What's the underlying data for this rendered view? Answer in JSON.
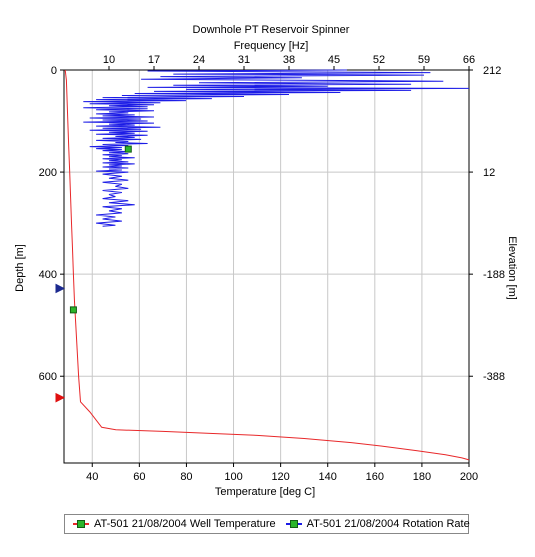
{
  "chart_data": {
    "type": "line",
    "title": "Downhole PT    Reservoir Spinner",
    "top_axis": {
      "label": "Frequency [Hz]",
      "ticks": [
        10,
        17,
        24,
        31,
        38,
        45,
        52,
        59,
        66
      ],
      "range": [
        3,
        66
      ]
    },
    "bottom_axis": {
      "label": "Temperature [deg C]",
      "ticks": [
        40,
        60,
        80,
        100,
        120,
        140,
        160,
        180,
        200
      ],
      "range": [
        28,
        200
      ]
    },
    "left_axis": {
      "label": "Depth [m]",
      "ticks": [
        0,
        200,
        400,
        600
      ],
      "range": [
        0,
        770
      ],
      "inverted": true
    },
    "right_axis": {
      "label": "Elevation [m]",
      "ticks": [
        212,
        12,
        -188,
        -388
      ]
    },
    "grid": true,
    "legend_position": "bottom",
    "series": [
      {
        "name": "AT-501 21/08/2004 Well Temperature",
        "color": "#e8282a",
        "axis": "bottom",
        "points": [
          [
            28.5,
            0
          ],
          [
            29,
            20
          ],
          [
            29.3,
            60
          ],
          [
            29.6,
            100
          ],
          [
            30,
            150
          ],
          [
            30.4,
            200
          ],
          [
            30.8,
            250
          ],
          [
            31.2,
            300
          ],
          [
            31.6,
            350
          ],
          [
            32,
            400
          ],
          [
            32.4,
            450
          ],
          [
            33,
            500
          ],
          [
            33.6,
            550
          ],
          [
            34.2,
            600
          ],
          [
            35,
            650
          ],
          [
            39,
            670
          ],
          [
            44,
            700
          ],
          [
            50,
            705
          ],
          [
            70,
            708
          ],
          [
            90,
            712
          ],
          [
            110,
            716
          ],
          [
            130,
            722
          ],
          [
            150,
            730
          ],
          [
            165,
            738
          ],
          [
            178,
            746
          ],
          [
            190,
            754
          ],
          [
            197,
            760
          ],
          [
            200,
            764
          ]
        ]
      },
      {
        "name": "AT-501 21/08/2004 Rotation Rate",
        "color": "#1c1ce6",
        "axis": "top",
        "points": [
          [
            47,
            0
          ],
          [
            16,
            2
          ],
          [
            60,
            5
          ],
          [
            20,
            8
          ],
          [
            59,
            10
          ],
          [
            18,
            13
          ],
          [
            40,
            15
          ],
          [
            15,
            18
          ],
          [
            62,
            22
          ],
          [
            24,
            25
          ],
          [
            57,
            28
          ],
          [
            20,
            30
          ],
          [
            44,
            32
          ],
          [
            16,
            34
          ],
          [
            66,
            36
          ],
          [
            22,
            38
          ],
          [
            57,
            40
          ],
          [
            17,
            42
          ],
          [
            46,
            44
          ],
          [
            14,
            46
          ],
          [
            38,
            48
          ],
          [
            12,
            50
          ],
          [
            31,
            52
          ],
          [
            9,
            54
          ],
          [
            26,
            56
          ],
          [
            8,
            58
          ],
          [
            22,
            60
          ],
          [
            6,
            62
          ],
          [
            18,
            64
          ],
          [
            7,
            66
          ],
          [
            17,
            68
          ],
          [
            10,
            70
          ],
          [
            16,
            72
          ],
          [
            6,
            74
          ],
          [
            16,
            76
          ],
          [
            8,
            78
          ],
          [
            17,
            80
          ],
          [
            10,
            82
          ],
          [
            13,
            84
          ],
          [
            8,
            86
          ],
          [
            14,
            88
          ],
          [
            9,
            90
          ],
          [
            17,
            92
          ],
          [
            7,
            94
          ],
          [
            15,
            96
          ],
          [
            9,
            98
          ],
          [
            16,
            100
          ],
          [
            6,
            102
          ],
          [
            17,
            104
          ],
          [
            10,
            106
          ],
          [
            14,
            108
          ],
          [
            8,
            110
          ],
          [
            18,
            112
          ],
          [
            9,
            114
          ],
          [
            15,
            116
          ],
          [
            7,
            118
          ],
          [
            16,
            120
          ],
          [
            10,
            122
          ],
          [
            14,
            124
          ],
          [
            8,
            126
          ],
          [
            16,
            128
          ],
          [
            11,
            130
          ],
          [
            14,
            132
          ],
          [
            9,
            134
          ],
          [
            15,
            136
          ],
          [
            8,
            138
          ],
          [
            13,
            140
          ],
          [
            11,
            142
          ],
          [
            16,
            144
          ],
          [
            9,
            146
          ],
          [
            13,
            148
          ],
          [
            7,
            150
          ],
          [
            12,
            152
          ],
          [
            8,
            154
          ],
          [
            12,
            156
          ],
          [
            9,
            158
          ],
          [
            13,
            160
          ],
          [
            10,
            162
          ],
          [
            13,
            164
          ],
          [
            9,
            166
          ],
          [
            12,
            168
          ],
          [
            10,
            170
          ],
          [
            14,
            172
          ],
          [
            9,
            174
          ],
          [
            12,
            176
          ],
          [
            10,
            178
          ],
          [
            13,
            180
          ],
          [
            9,
            182
          ],
          [
            14,
            184
          ],
          [
            10,
            186
          ],
          [
            12,
            188
          ],
          [
            9,
            190
          ],
          [
            13,
            192
          ],
          [
            10,
            194
          ],
          [
            12,
            196
          ],
          [
            8,
            198
          ],
          [
            13,
            200
          ],
          [
            9,
            204
          ],
          [
            12,
            208
          ],
          [
            10,
            212
          ],
          [
            13,
            216
          ],
          [
            9,
            220
          ],
          [
            12,
            224
          ],
          [
            11,
            228
          ],
          [
            13,
            232
          ],
          [
            9,
            236
          ],
          [
            12,
            240
          ],
          [
            10,
            244
          ],
          [
            11,
            248
          ],
          [
            9,
            252
          ],
          [
            13,
            256
          ],
          [
            10,
            260
          ],
          [
            14,
            264
          ],
          [
            9,
            268
          ],
          [
            12,
            272
          ],
          [
            10,
            276
          ],
          [
            12,
            280
          ],
          [
            8,
            284
          ],
          [
            11,
            288
          ],
          [
            9,
            292
          ],
          [
            12,
            296
          ],
          [
            8,
            300
          ],
          [
            11,
            304
          ],
          [
            9,
            306
          ]
        ]
      }
    ],
    "markers": [
      {
        "series": "AT-501 21/08/2004 Rotation Rate",
        "axis": "top",
        "x": 13,
        "y": 155,
        "shape": "square",
        "color": "#2bb52b"
      },
      {
        "series": "AT-501 21/08/2004 Well Temperature",
        "axis": "bottom",
        "x": 32,
        "y": 470,
        "shape": "square",
        "color": "#2bb52b"
      },
      {
        "axis": "left",
        "y": 428,
        "shape": "triangle",
        "color": "#1c2a8f"
      },
      {
        "axis": "left",
        "y": 642,
        "shape": "triangle",
        "color": "#e01010"
      }
    ]
  }
}
